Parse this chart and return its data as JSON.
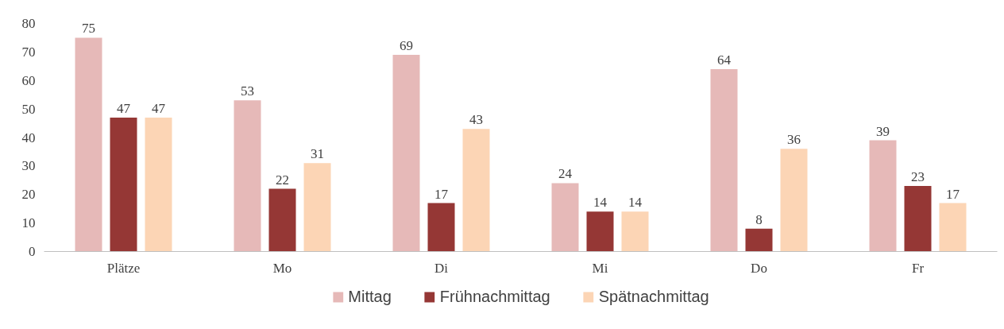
{
  "chart_data": {
    "type": "bar",
    "categories": [
      "Plätze",
      "Mo",
      "Di",
      "Mi",
      "Do",
      "Fr"
    ],
    "series": [
      {
        "name": "Mittag",
        "color": "#e6b9b8",
        "values": [
          75,
          53,
          69,
          24,
          64,
          39
        ]
      },
      {
        "name": "Frühnachmittag",
        "color": "#953735",
        "values": [
          47,
          22,
          17,
          14,
          8,
          23
        ]
      },
      {
        "name": "Spätnachmittag",
        "color": "#fcd5b5",
        "values": [
          47,
          31,
          43,
          14,
          36,
          17
        ]
      }
    ],
    "ylim": [
      0,
      80
    ],
    "yticks": [
      0,
      10,
      20,
      30,
      40,
      50,
      60,
      70,
      80
    ],
    "grid": false,
    "legend": "bottom",
    "data_labels": true
  }
}
